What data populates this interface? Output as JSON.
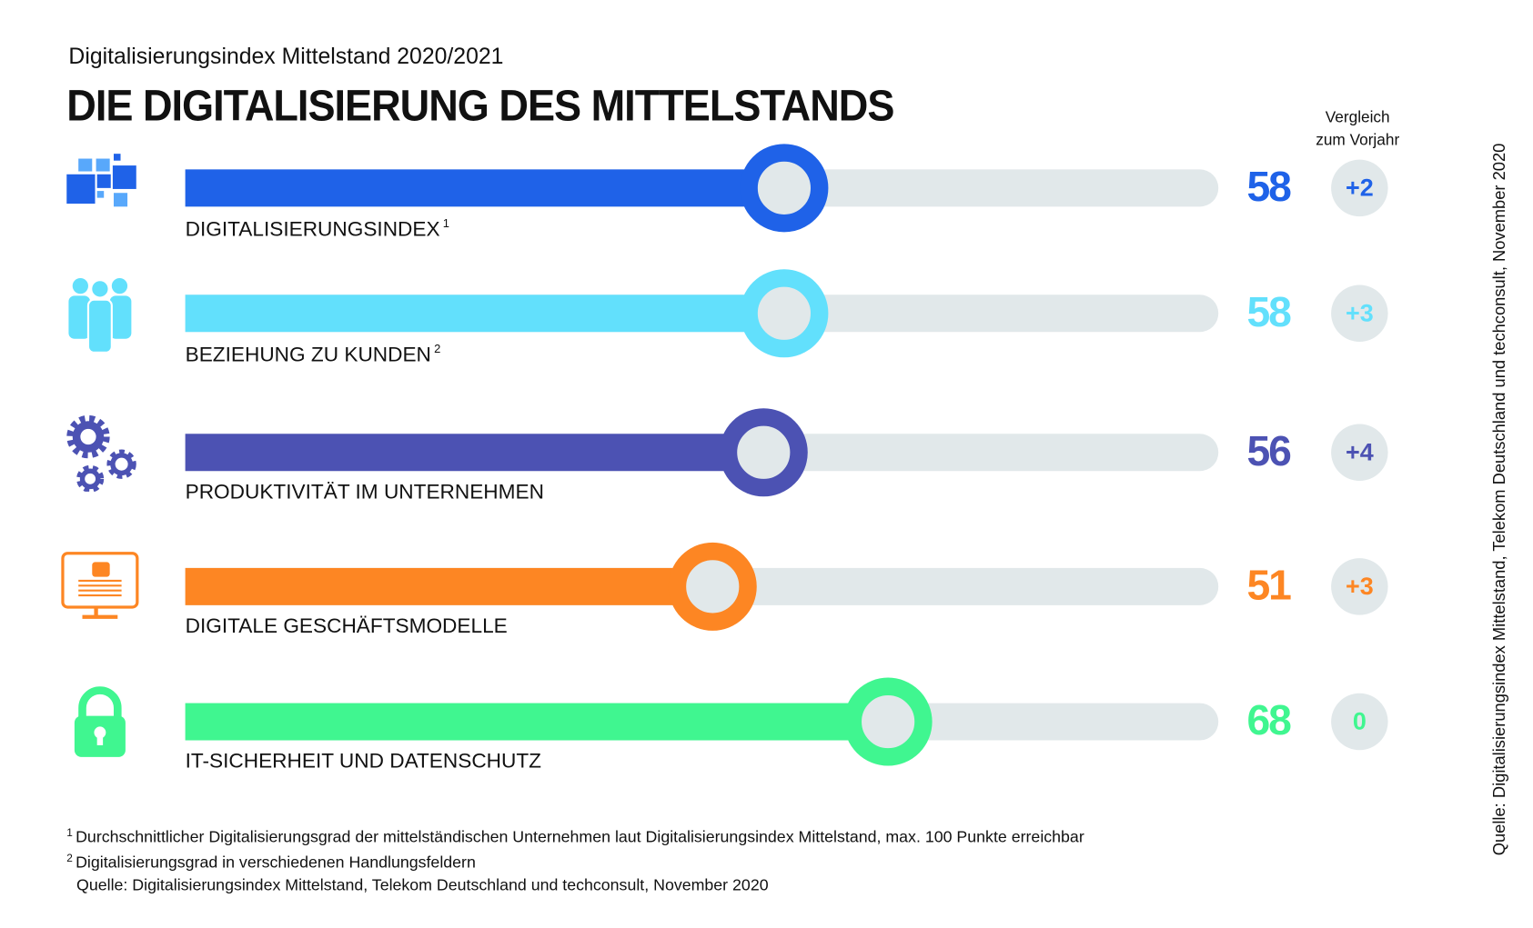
{
  "header": {
    "subtitle": "Digitalisierungsindex Mittelstand 2020/2021",
    "title": "DIE DIGITALISIERUNG DES MITTELSTANDS",
    "comparison_line1": "Vergleich",
    "comparison_line2": "zum Vorjahr"
  },
  "side_source": "Quelle: Digitalisierungsindex Mittelstand, Telekom Deutschland und techconsult, November 2020",
  "chart_data": {
    "type": "bar",
    "orientation": "horizontal",
    "xlim": [
      0,
      100
    ],
    "categories": [
      "DIGITALISIERUNGSINDEX",
      "BEZIEHUNG ZU KUNDEN",
      "PRODUKTIVITÄT IM UNTERNEHMEN",
      "DIGITALE GESCHÄFTSMODELLE",
      "IT-SICHERHEIT UND DATENSCHUTZ"
    ],
    "footnote_marks": [
      "1",
      "2",
      "",
      "",
      ""
    ],
    "values": [
      58,
      58,
      56,
      51,
      68
    ],
    "value_labels": [
      "58",
      "58",
      "56",
      "51",
      "68"
    ],
    "change_vs_previous_year": [
      "+2",
      "+3",
      "+4",
      "+3",
      "0"
    ],
    "colors": [
      "#1f62e8",
      "#62e0fc",
      "#4c52b3",
      "#fd8623",
      "#40f690"
    ],
    "icons": [
      "squares-icon",
      "people-icon",
      "gears-icon",
      "monitor-icon",
      "lock-icon"
    ],
    "track_color": "#e1e8ea"
  },
  "footnotes": {
    "n1_mark": "1",
    "n1": "Durchschnittlicher Digitalisierungsgrad der mittelständischen Unternehmen laut Digitalisierungsindex Mittelstand, max. 100 Punkte erreichbar",
    "n2_mark": "2",
    "n2": "Digitalisierungsgrad in verschiedenen Handlungsfeldern",
    "source": "Quelle: Digitalisierungsindex Mittelstand, Telekom Deutschland und techconsult, November 2020"
  }
}
